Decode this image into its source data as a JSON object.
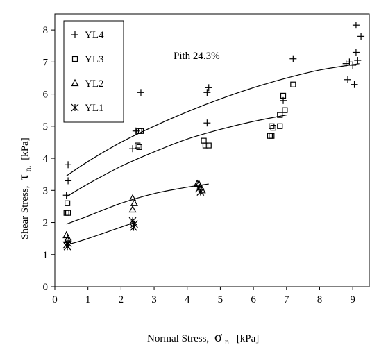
{
  "chart_data": {
    "type": "scatter",
    "xlabel_prefix": "Normal Stress,",
    "xlabel_symbol": "σ",
    "xlabel_sub": "n.",
    "xlabel_unit": "[kPa]",
    "ylabel_prefix": "Shear Stress,",
    "ylabel_symbol": "τ",
    "ylabel_sub": "n.",
    "ylabel_unit": "[kPa]",
    "annotation": "Pith 24.3%",
    "xlim": [
      0,
      9.5
    ],
    "ylim": [
      0,
      8.5
    ],
    "x_ticks": [
      0,
      1,
      2,
      3,
      4,
      5,
      6,
      7,
      8,
      9
    ],
    "y_ticks": [
      0,
      1,
      2,
      3,
      4,
      5,
      6,
      7,
      8
    ],
    "grid": false,
    "legend_position": "top-left",
    "series": [
      {
        "name": "YL4",
        "marker": "plus",
        "points": [
          [
            0.4,
            3.8
          ],
          [
            0.4,
            3.3
          ],
          [
            0.35,
            2.85
          ],
          [
            2.45,
            4.85
          ],
          [
            2.35,
            4.3
          ],
          [
            2.6,
            6.05
          ],
          [
            4.6,
            6.05
          ],
          [
            4.65,
            6.2
          ],
          [
            4.6,
            5.1
          ],
          [
            6.9,
            5.8
          ],
          [
            7.2,
            7.1
          ],
          [
            8.8,
            6.95
          ],
          [
            8.85,
            6.45
          ],
          [
            8.9,
            7.0
          ],
          [
            9.0,
            6.9
          ],
          [
            9.05,
            6.3
          ],
          [
            9.1,
            7.3
          ],
          [
            9.1,
            8.15
          ],
          [
            9.15,
            7.05
          ],
          [
            9.25,
            7.8
          ]
        ],
        "fit": [
          [
            0.35,
            3.45
          ],
          [
            1,
            3.9
          ],
          [
            2,
            4.5
          ],
          [
            3,
            5.0
          ],
          [
            4,
            5.45
          ],
          [
            5,
            5.85
          ],
          [
            6,
            6.2
          ],
          [
            7,
            6.5
          ],
          [
            8,
            6.75
          ],
          [
            9.2,
            6.95
          ]
        ]
      },
      {
        "name": "YL3",
        "marker": "square",
        "points": [
          [
            0.38,
            2.6
          ],
          [
            0.35,
            2.3
          ],
          [
            0.4,
            2.3
          ],
          [
            2.5,
            4.4
          ],
          [
            2.55,
            4.35
          ],
          [
            2.55,
            4.85
          ],
          [
            2.6,
            4.85
          ],
          [
            4.5,
            4.55
          ],
          [
            4.55,
            4.4
          ],
          [
            4.65,
            4.4
          ],
          [
            6.5,
            4.7
          ],
          [
            6.55,
            4.7
          ],
          [
            6.55,
            5.0
          ],
          [
            6.6,
            4.95
          ],
          [
            6.8,
            5.0
          ],
          [
            6.8,
            5.35
          ],
          [
            6.9,
            5.95
          ],
          [
            6.95,
            5.5
          ],
          [
            7.2,
            6.3
          ]
        ],
        "fit": [
          [
            0.35,
            2.8
          ],
          [
            1,
            3.2
          ],
          [
            2,
            3.75
          ],
          [
            3,
            4.2
          ],
          [
            4,
            4.6
          ],
          [
            5,
            4.9
          ],
          [
            6,
            5.15
          ],
          [
            7.0,
            5.35
          ]
        ]
      },
      {
        "name": "YL2",
        "marker": "triangle",
        "points": [
          [
            0.35,
            1.6
          ],
          [
            0.38,
            1.45
          ],
          [
            0.4,
            1.5
          ],
          [
            2.35,
            2.75
          ],
          [
            2.4,
            2.6
          ],
          [
            2.35,
            2.4
          ],
          [
            4.3,
            3.2
          ],
          [
            4.35,
            3.2
          ],
          [
            4.4,
            3.1
          ],
          [
            4.45,
            3.0
          ]
        ],
        "fit": [
          [
            0.35,
            1.95
          ],
          [
            1,
            2.2
          ],
          [
            2,
            2.6
          ],
          [
            3,
            2.9
          ],
          [
            4,
            3.1
          ],
          [
            4.65,
            3.2
          ]
        ]
      },
      {
        "name": "YL1",
        "marker": "asterisk",
        "points": [
          [
            0.35,
            1.3
          ],
          [
            0.38,
            1.25
          ],
          [
            0.4,
            1.35
          ],
          [
            2.35,
            2.05
          ],
          [
            2.4,
            1.95
          ],
          [
            2.38,
            1.85
          ],
          [
            4.35,
            3.05
          ],
          [
            4.4,
            2.95
          ]
        ],
        "fit": [
          [
            0.35,
            1.3
          ],
          [
            1,
            1.5
          ],
          [
            2.4,
            2.0
          ]
        ]
      }
    ]
  }
}
